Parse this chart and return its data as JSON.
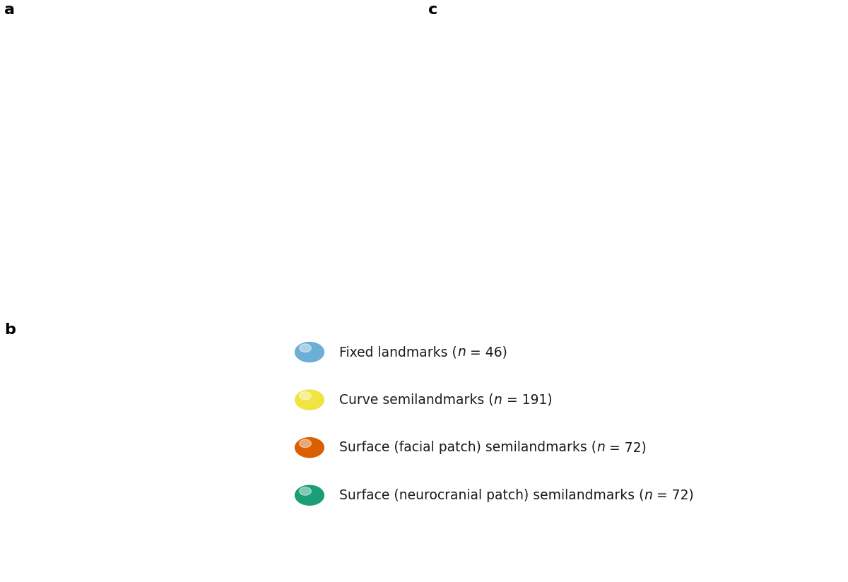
{
  "background_color": "#ffffff",
  "panel_labels": [
    "a",
    "b",
    "c"
  ],
  "panel_label_fontsize": 16,
  "panel_label_weight": "bold",
  "legend_colors": [
    "#6baed6",
    "#f0e442",
    "#d95f02",
    "#1b9e77"
  ],
  "legend_texts_pre": [
    "Fixed landmarks (",
    "Curve semilandmarks (",
    "Surface (facial patch) semilandmarks (",
    "Surface (neurocranial patch) semilandmarks ("
  ],
  "legend_texts_post": [
    " = 46)",
    " = 191)",
    " = 72)",
    " = 72)"
  ],
  "legend_italic": "n",
  "legend_fontsize": 13.5,
  "legend_marker_size": 22,
  "note": "White panels approximate 3D skull renders. Layout: a=top-left lateral, b=bottom-left dorsal, c=right ventral, legend=bottom-center."
}
